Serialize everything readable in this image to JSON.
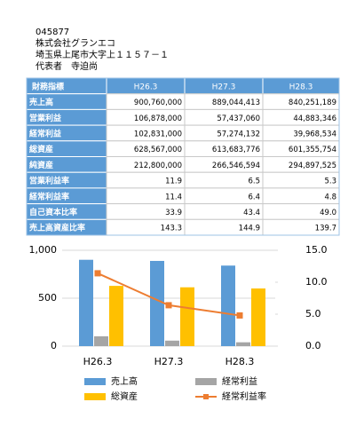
{
  "header": {
    "lines": [
      "045877",
      "株式会社グランエコ",
      "埼玉県上尾市大字上１１５７－１",
      "代表者　寺迫尚"
    ]
  },
  "table": {
    "header": [
      "財務指標",
      "H26.3",
      "H27.3",
      "H28.3"
    ],
    "rows": [
      [
        "売上高",
        "900,760,000",
        "889,044,413",
        "840,251,189"
      ],
      [
        "営業利益",
        "106,878,000",
        "57,437,060",
        "44,883,346"
      ],
      [
        "経常利益",
        "102,831,000",
        "57,274,132",
        "39,968,534"
      ],
      [
        "総資産",
        "628,567,000",
        "613,683,776",
        "601,355,754"
      ],
      [
        "純資産",
        "212,800,000",
        "266,546,594",
        "294,897,525"
      ],
      [
        "営業利益率",
        "11.9",
        "6.5",
        "5.3"
      ],
      [
        "経常利益率",
        "11.4",
        "6.4",
        "4.8"
      ],
      [
        "自己資本比率",
        "33.9",
        "43.4",
        "49.0"
      ],
      [
        "売上高資産比率",
        "143.3",
        "144.9",
        "139.7"
      ]
    ]
  },
  "chart_data": {
    "type": "bar-line",
    "categories": [
      "H26.3",
      "H27.3",
      "H28.3"
    ],
    "series": [
      {
        "name": "売上高",
        "color": "#5b9bd5",
        "values": [
          900.76,
          889.04,
          840.25
        ]
      },
      {
        "name": "経常利益",
        "color": "#a5a5a5",
        "values": [
          102.83,
          57.27,
          39.97
        ]
      },
      {
        "name": "総資産",
        "color": "#ffc000",
        "values": [
          628.57,
          613.68,
          601.36
        ]
      },
      {
        "name": "経常利益率",
        "color": "#ed7d31",
        "values": [
          11.4,
          6.4,
          4.8
        ],
        "axis": "y2"
      }
    ],
    "ylim": [
      0,
      1000
    ],
    "yticks": [
      0,
      500,
      {
        "value": 1000,
        "label": "1,000"
      }
    ],
    "y2lim": [
      0,
      15
    ],
    "y2ticks": [
      {
        "value": 0,
        "label": "0.0"
      },
      {
        "value": 5,
        "label": "5.0"
      },
      {
        "value": 10,
        "label": "10.0"
      },
      {
        "value": 15,
        "label": "15.0"
      }
    ],
    "grid": true
  }
}
